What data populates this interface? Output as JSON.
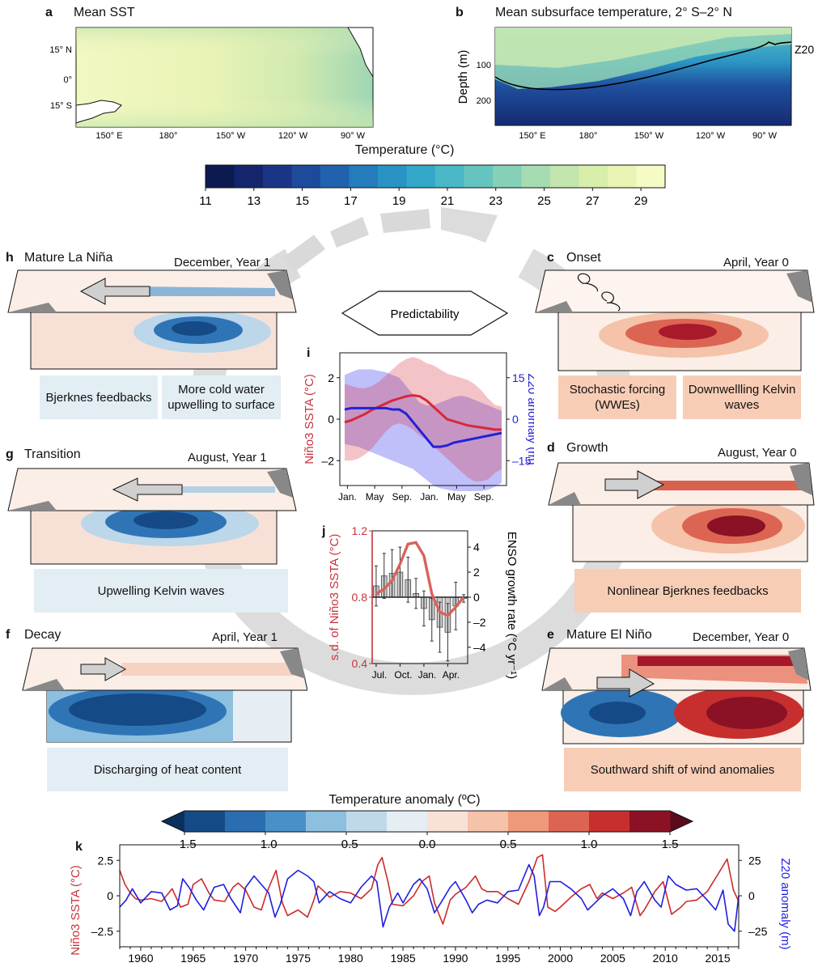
{
  "panels": {
    "a": {
      "letter": "a",
      "title": "Mean SST",
      "lat_ticks": [
        "15° N",
        "0°",
        "15° S"
      ],
      "lon_ticks": [
        "150° E",
        "180°",
        "150° W",
        "120° W",
        "90° W"
      ]
    },
    "b": {
      "letter": "b",
      "title": "Mean subsurface temperature, 2° S–2° N",
      "ylabel": "Depth (m)",
      "depth_ticks": [
        "100",
        "200"
      ],
      "lon_ticks": [
        "150° E",
        "180°",
        "150° W",
        "120° W",
        "90° W"
      ],
      "z20_label": "Z20"
    },
    "colorbar_top": {
      "title": "Temperature (°C)",
      "ticks": [
        "11",
        "13",
        "15",
        "17",
        "19",
        "21",
        "23",
        "25",
        "27",
        "29"
      ],
      "range": [
        11,
        30
      ],
      "colors": [
        "#0d1a4f",
        "#14256b",
        "#1b3586",
        "#1e4a9c",
        "#2162ae",
        "#247cbd",
        "#2994c4",
        "#33a8c8",
        "#4ab8c6",
        "#66c4c0",
        "#86d0b8",
        "#a6dcb2",
        "#c2e6ad",
        "#d8eeab",
        "#e9f5b5",
        "#f6fbc6"
      ]
    },
    "stages": {
      "h": {
        "letter": "h",
        "title": "Mature La Niña",
        "time": "December, Year 1",
        "box1": "Bjerknes feedbacks",
        "box2": "More cold water upwelling to surface"
      },
      "g": {
        "letter": "g",
        "title": "Transition",
        "time": "August, Year 1",
        "box1": "Upwelling Kelvin waves"
      },
      "f": {
        "letter": "f",
        "title": "Decay",
        "time": "April, Year 1",
        "box1": "Discharging of heat content"
      },
      "c": {
        "letter": "c",
        "title": "Onset",
        "time": "April, Year 0",
        "box1": "Stochastic forcing (WWEs)",
        "box2": "Downwellling Kelvin waves"
      },
      "d": {
        "letter": "d",
        "title": "Growth",
        "time": "August, Year 0",
        "box1": "Nonlinear Bjerknes feedbacks"
      },
      "e": {
        "letter": "e",
        "title": "Mature El Niño",
        "time": "December, Year 0",
        "box1": "Southward shift of wind anomalies"
      }
    },
    "predictability": "Predictability",
    "colorbar_anom": {
      "title": "Temperature anomaly (ºC)",
      "ticks": [
        "–1.5",
        "–1.0",
        "–0.5",
        "0.0",
        "0.5",
        "1.0",
        "1.5"
      ],
      "colors": [
        "#164a86",
        "#2b6db1",
        "#4a90c8",
        "#8dbfdf",
        "#bfd9ea",
        "#e6eef4",
        "#f9e1d8",
        "#f5c2aa",
        "#ee9a7a",
        "#db6552",
        "#c72f2f",
        "#8b1225"
      ]
    }
  },
  "chart_data": [
    {
      "id": "i",
      "letter": "i",
      "type": "line",
      "x_ticks": [
        "Jan.",
        "May",
        "Sep.",
        "Jan.",
        "May",
        "Sep."
      ],
      "ylabel_left": "Niño3 SSTA (°C)",
      "ylabel_right": "Z20 anomaly (m)",
      "yleft_ticks": [
        "2",
        "0",
        "–2"
      ],
      "yright_ticks": [
        "15",
        "0",
        "–15"
      ],
      "ylim_left": [
        -3.2,
        3.2
      ],
      "ylim_right": [
        -24,
        24
      ],
      "x": [
        0,
        1,
        2,
        3,
        4,
        5,
        6,
        7,
        8,
        9,
        10,
        11,
        12,
        13,
        14,
        15,
        16,
        17,
        18,
        19,
        20,
        21,
        22,
        23
      ],
      "series": [
        {
          "axis": "left",
          "color": "#d62839",
          "values": [
            -0.15,
            -0.05,
            0.1,
            0.25,
            0.45,
            0.6,
            0.75,
            0.9,
            1.0,
            1.1,
            1.15,
            1.1,
            0.9,
            0.6,
            0.3,
            0.0,
            -0.1,
            -0.2,
            -0.3,
            -0.35,
            -0.4,
            -0.45,
            -0.5,
            -0.5
          ],
          "upper": [
            1.7,
            1.6,
            1.5,
            1.5,
            1.6,
            1.8,
            2.1,
            2.4,
            2.7,
            2.9,
            3.0,
            2.9,
            2.7,
            2.6,
            2.4,
            2.2,
            2.1,
            2.0,
            1.9,
            1.7,
            1.4,
            1.0,
            0.7,
            0.6
          ],
          "lower": [
            -2.0,
            -2.0,
            -1.9,
            -1.7,
            -1.4,
            -1.0,
            -0.6,
            -0.3,
            -0.2,
            -0.3,
            -0.5,
            -0.8,
            -1.0,
            -1.3,
            -1.6,
            -1.9,
            -2.2,
            -2.5,
            -2.8,
            -3.0,
            -3.0,
            -2.9,
            -2.6,
            -2.4
          ]
        },
        {
          "axis": "right",
          "color": "#2121d8",
          "values": [
            3.5,
            4,
            4,
            4,
            4,
            4,
            4,
            3.5,
            3.5,
            2,
            -1,
            -4,
            -7,
            -10,
            -10,
            -9.5,
            -8.5,
            -8,
            -7.5,
            -7,
            -6.5,
            -6,
            -5.5,
            -5
          ],
          "upper": [
            16,
            17,
            18,
            18,
            18,
            17.5,
            17,
            16,
            15,
            12,
            9,
            6,
            5,
            5,
            6,
            7,
            8,
            8.5,
            8,
            7,
            6,
            5,
            4,
            3
          ],
          "lower": [
            -9,
            -9.5,
            -10,
            -11,
            -12,
            -13,
            -14,
            -15,
            -16,
            -17,
            -18,
            -20,
            -22,
            -24,
            -25,
            -25.5,
            -26,
            -26,
            -26,
            -26,
            -26,
            -25.5,
            -24.5,
            -23
          ]
        }
      ]
    },
    {
      "id": "j",
      "letter": "j",
      "type": "bar",
      "x_ticks": [
        "Jul.",
        "Oct.",
        "Jan.",
        "Apr."
      ],
      "ylabel_left": "s.d. of Niño3 SSTA (°C)",
      "ylabel_right": "ENSO growth rate (°C yr⁻¹)",
      "yleft_ticks": [
        "1.2",
        "0.8",
        "0.4"
      ],
      "yright_ticks": [
        "4",
        "2",
        "0",
        "–2",
        "–4"
      ],
      "ylim_left": [
        0.4,
        1.2
      ],
      "ylim_right": [
        -5.3,
        5.3
      ],
      "categories": [
        1,
        2,
        3,
        4,
        5,
        6,
        7,
        8,
        9,
        10,
        11,
        12
      ],
      "bars": [
        0.9,
        1.7,
        1.9,
        2.0,
        1.4,
        0.3,
        -0.9,
        -1.8,
        -2.4,
        -2.8,
        -0.7,
        -0.1
      ],
      "errors": [
        1.6,
        1.8,
        1.9,
        2.0,
        1.8,
        1.2,
        1.4,
        1.7,
        2.0,
        2.3,
        1.9,
        0.3
      ],
      "sd_line": {
        "color": "#d9625b",
        "values": [
          0.82,
          0.85,
          0.9,
          1.0,
          1.12,
          1.13,
          1.05,
          0.82,
          0.71,
          0.69,
          0.74,
          0.8
        ]
      }
    },
    {
      "id": "k",
      "letter": "k",
      "type": "line",
      "x_ticks": [
        "1960",
        "1965",
        "1970",
        "1975",
        "1980",
        "1985",
        "1990",
        "1995",
        "2000",
        "2005",
        "2010",
        "2015"
      ],
      "xlim": [
        1958,
        2017
      ],
      "ylabel_left": "Niño3 SSTA (°C)",
      "ylabel_right": "Z20 anomaly (m)",
      "yleft_ticks": [
        "2.5",
        "0",
        "–2.5"
      ],
      "yright_ticks": [
        "25",
        "0",
        "–25"
      ],
      "ylim_left": [
        -3.6,
        3.6
      ],
      "ylim_right": [
        -36,
        36
      ],
      "series": [
        {
          "name": "Niño3 SSTA",
          "axis": "left",
          "color": "#cc2b2b",
          "x": [
            1958,
            1958.5,
            1959,
            1959.5,
            1960,
            1961,
            1962,
            1963,
            1963.8,
            1964.5,
            1965,
            1965.8,
            1966.5,
            1967,
            1968,
            1968.8,
            1969.3,
            1970,
            1970.8,
            1971.5,
            1972,
            1972.9,
            1973.5,
            1974,
            1975,
            1975.9,
            1976.5,
            1976.9,
            1977.5,
            1978,
            1979,
            1980,
            1981,
            1982,
            1982.6,
            1983,
            1983.6,
            1984,
            1985,
            1986,
            1986.8,
            1987.5,
            1988,
            1988.8,
            1989.5,
            1990,
            1991,
            1991.9,
            1992.5,
            1993,
            1994,
            1995,
            1996,
            1997,
            1997.8,
            1998.3,
            1998.8,
            1999.5,
            2000,
            2001,
            2002,
            2002.8,
            2003.5,
            2004,
            2005,
            2006,
            2006.8,
            2007.6,
            2008,
            2009,
            2009.8,
            2010.6,
            2011.5,
            2012,
            2013,
            2014,
            2015,
            2015.9,
            2016.5,
            2017
          ],
          "values": [
            1.8,
            0.8,
            0.2,
            -0.2,
            -0.3,
            -0.2,
            -0.4,
            0.5,
            -0.8,
            -0.6,
            0.8,
            1.2,
            0.2,
            -0.3,
            -0.4,
            0.6,
            0.9,
            0.4,
            -0.8,
            -1.0,
            0.2,
            1.8,
            -0.5,
            -1.4,
            -1.0,
            -1.5,
            -0.3,
            0.7,
            0.3,
            -0.1,
            0.3,
            0.2,
            -0.2,
            0.5,
            2.2,
            2.7,
            0.9,
            -0.6,
            -0.7,
            0.0,
            1.0,
            1.4,
            -0.5,
            -2.0,
            -0.3,
            0.1,
            0.6,
            1.4,
            0.5,
            0.3,
            0.3,
            -0.2,
            -0.6,
            1.0,
            2.7,
            2.9,
            -0.8,
            -1.1,
            -0.8,
            -0.1,
            0.5,
            0.8,
            -0.2,
            0.2,
            -0.2,
            0.2,
            0.6,
            -1.4,
            -1.0,
            0.3,
            1.0,
            -1.3,
            -0.8,
            -0.4,
            -0.3,
            0.3,
            1.5,
            2.6,
            0.4,
            -0.4
          ]
        },
        {
          "name": "Z20 anomaly",
          "axis": "right",
          "color": "#1f1fe0",
          "x": [
            1958,
            1958.6,
            1959.2,
            1960,
            1961,
            1962,
            1962.8,
            1963.5,
            1964,
            1964.6,
            1965.3,
            1966,
            1967,
            1967.9,
            1968.6,
            1969.5,
            1970,
            1970.8,
            1971.5,
            1972.2,
            1972.8,
            1973.3,
            1974,
            1975,
            1975.9,
            1976.5,
            1977,
            1978,
            1979,
            1980,
            1981,
            1982,
            1982.5,
            1983.1,
            1983.7,
            1984.5,
            1985,
            1986,
            1986.6,
            1987.3,
            1988,
            1988.6,
            1989.5,
            1990,
            1991,
            1991.6,
            1992.2,
            1993,
            1994,
            1995,
            1996,
            1997,
            1997.5,
            1998,
            1998.4,
            1999,
            2000,
            2001,
            2002,
            2002.6,
            2003.3,
            2004,
            2005,
            2006,
            2006.7,
            2007.3,
            2008,
            2009,
            2009.6,
            2010.3,
            2011,
            2012,
            2013,
            2014,
            2014.8,
            2015.5,
            2016,
            2016.6,
            2017
          ],
          "values": [
            -8,
            -3,
            5,
            -5,
            3,
            2,
            -10,
            -7,
            12,
            6,
            -3,
            -10,
            6,
            8,
            -2,
            -12,
            6,
            14,
            8,
            2,
            -15,
            -6,
            12,
            18,
            14,
            10,
            -5,
            3,
            -2,
            -5,
            6,
            14,
            10,
            -22,
            -8,
            2,
            -5,
            8,
            12,
            5,
            -12,
            -5,
            6,
            10,
            -3,
            -12,
            -6,
            -3,
            -5,
            3,
            4,
            22,
            14,
            -14,
            -8,
            10,
            10,
            5,
            -2,
            -10,
            -5,
            0,
            5,
            -2,
            -14,
            3,
            10,
            -3,
            -8,
            14,
            8,
            4,
            5,
            -3,
            -10,
            4,
            -20,
            -25,
            0
          ]
        }
      ]
    }
  ]
}
